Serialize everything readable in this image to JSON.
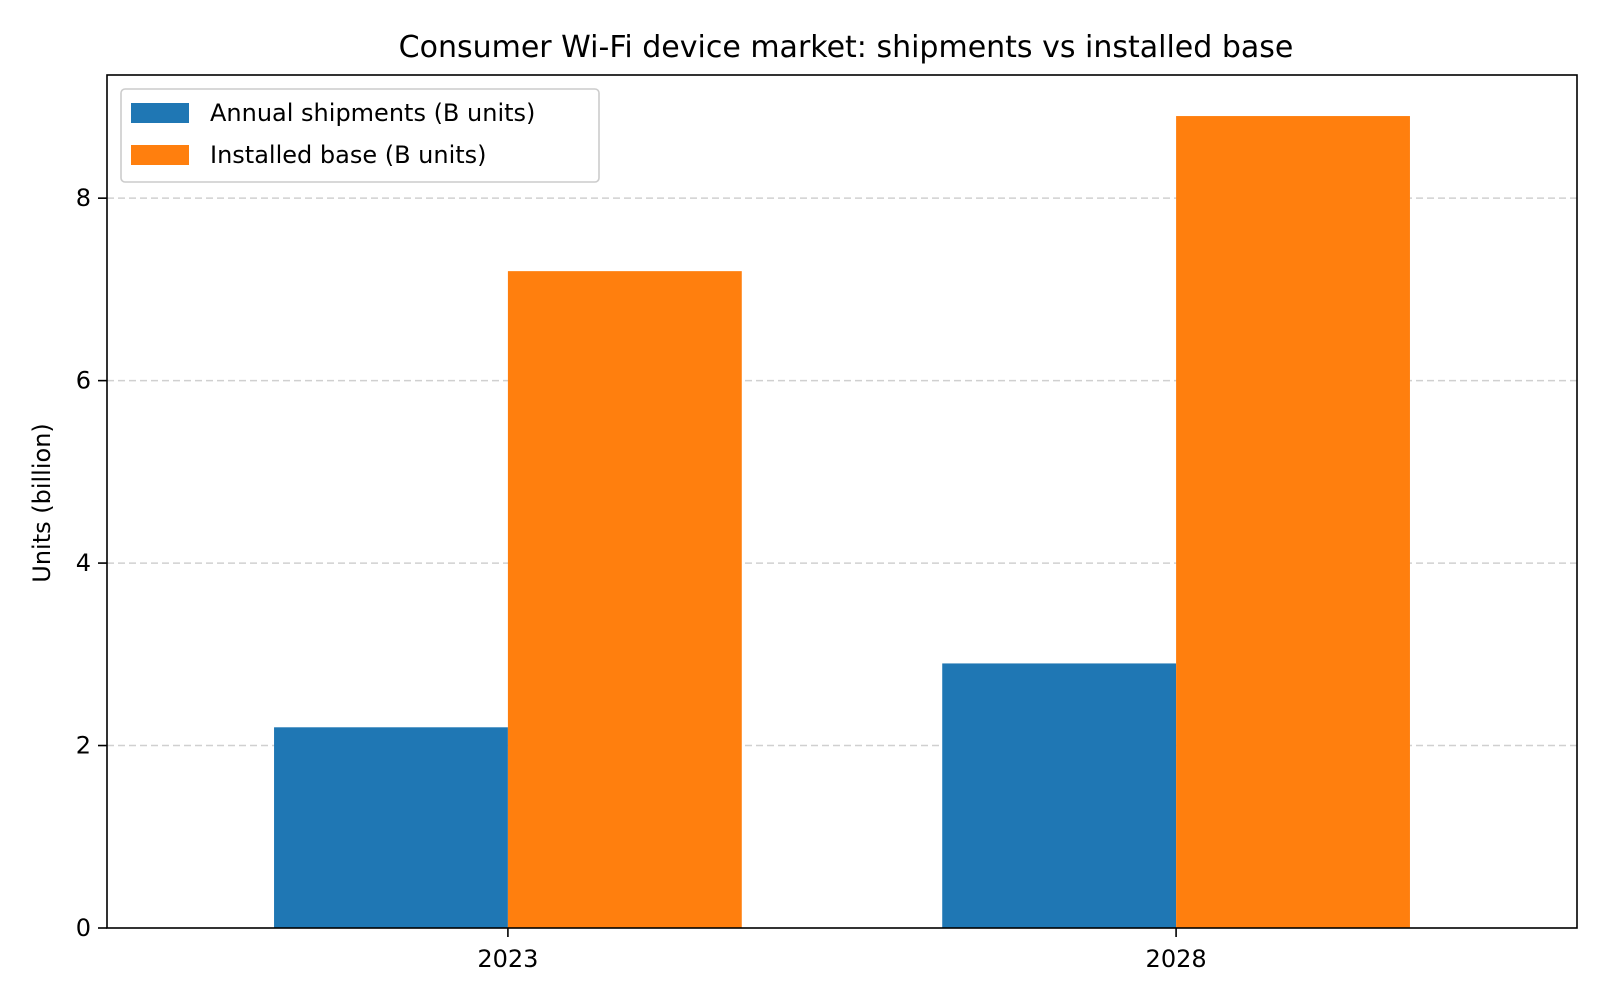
{
  "chart_data": {
    "type": "bar",
    "title": "Consumer Wi-Fi device market: shipments vs installed base",
    "xlabel": "",
    "ylabel": "Units (billion)",
    "categories": [
      "2023",
      "2028"
    ],
    "series": [
      {
        "name": "Annual shipments (B units)",
        "values": [
          2.2,
          2.9
        ],
        "color": "#1f77b4"
      },
      {
        "name": "Installed base (B units)",
        "values": [
          7.2,
          8.9
        ],
        "color": "#ff7f0e"
      }
    ],
    "ylim": [
      0,
      9.35
    ],
    "yticks": [
      0,
      2,
      4,
      6,
      8
    ],
    "grid": "y-dashed",
    "legend_position": "top-left"
  }
}
